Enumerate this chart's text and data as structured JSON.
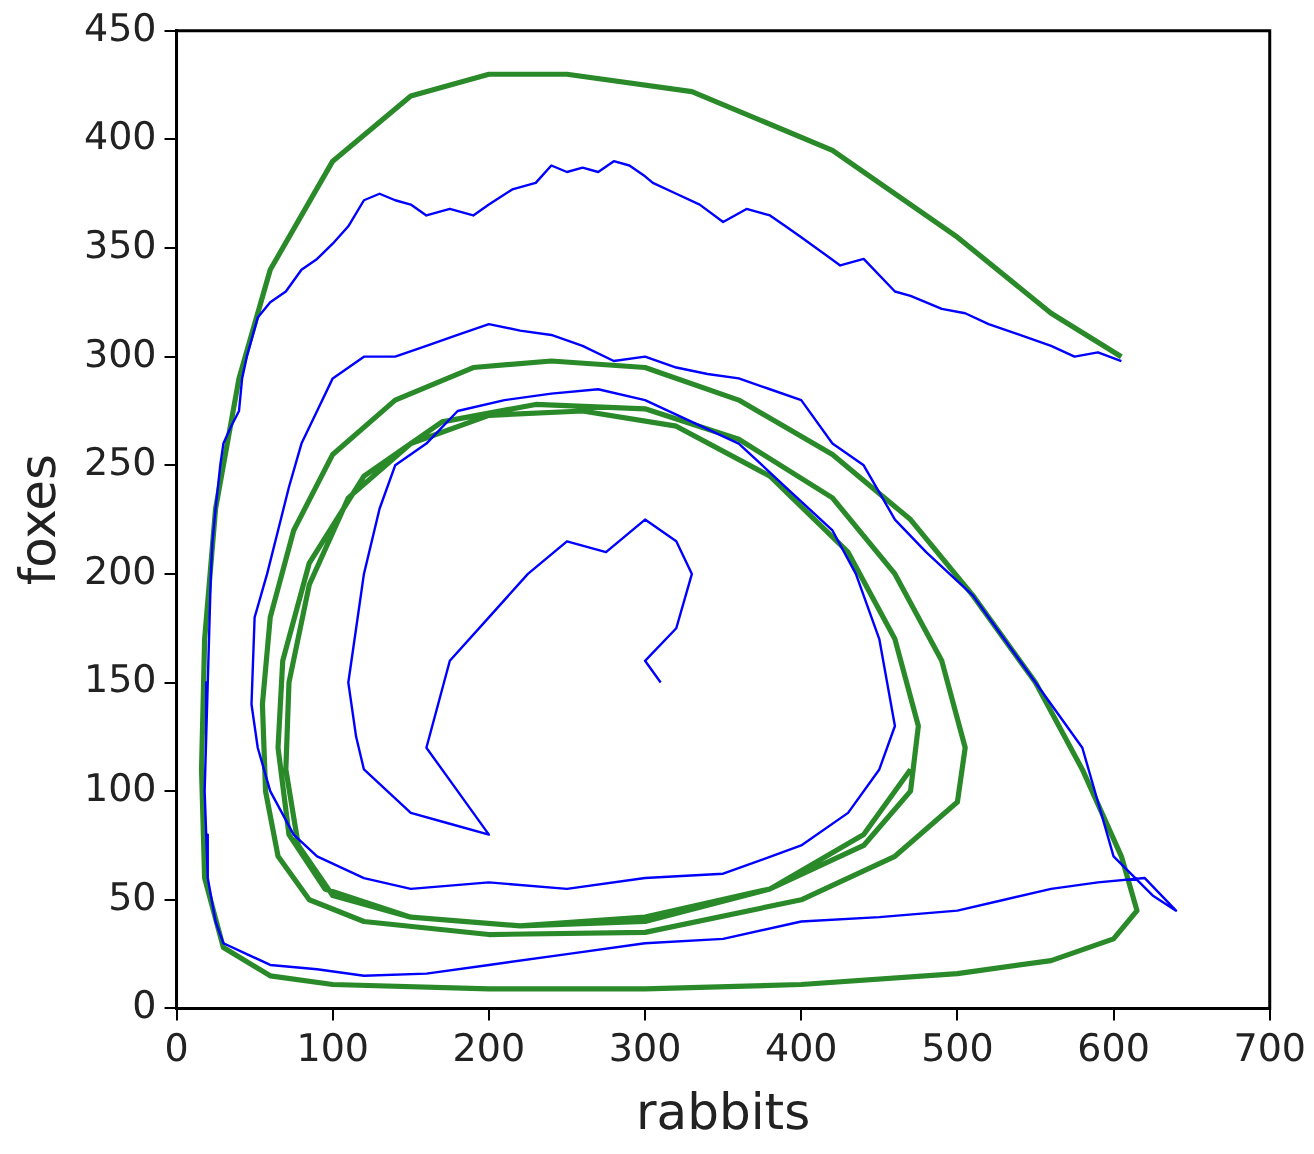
{
  "chart_data": {
    "type": "line",
    "xlabel": "rabbits",
    "ylabel": "foxes",
    "xlim": [
      0,
      700
    ],
    "ylim": [
      0,
      450
    ],
    "xticks": [
      0,
      100,
      200,
      300,
      400,
      500,
      600,
      700
    ],
    "yticks": [
      0,
      50,
      100,
      150,
      200,
      250,
      300,
      350,
      400,
      450
    ],
    "grid": false,
    "legend": false,
    "marker": "none",
    "line_style": "solid",
    "series": [
      {
        "color": "#0000ff",
        "x": [
          605,
          590,
          575,
          560,
          540,
          520,
          505,
          490,
          470,
          460,
          440,
          425,
          400,
          390,
          380,
          365,
          350,
          335,
          320,
          305,
          300,
          290,
          280,
          270,
          260,
          250,
          240,
          230,
          215,
          200,
          190,
          175,
          160,
          150,
          140,
          130,
          120,
          110,
          100,
          90,
          80,
          70,
          60,
          52,
          45,
          42,
          40,
          35,
          30,
          28,
          25,
          23,
          22,
          21,
          20,
          19,
          18,
          19,
          20,
          25,
          30,
          45,
          60,
          90,
          120,
          160,
          200,
          250,
          300,
          350,
          400,
          450,
          500,
          530,
          560,
          590,
          620,
          640,
          625,
          600,
          590,
          580,
          560,
          540,
          525,
          510,
          495,
          480,
          460,
          440,
          420,
          400,
          380,
          360,
          340,
          320,
          300,
          280,
          260,
          240,
          220,
          200,
          180,
          160,
          140,
          120,
          100,
          90,
          80,
          72,
          65,
          58,
          50,
          48,
          52,
          60,
          75,
          90,
          120,
          150,
          200,
          250,
          300,
          350,
          400,
          430,
          450,
          460,
          455,
          450,
          435,
          420,
          390,
          360,
          330,
          300,
          270,
          240,
          210,
          180,
          160,
          140,
          130,
          120,
          115,
          110,
          115,
          120,
          135,
          150,
          175,
          200,
          180,
          160,
          175,
          200,
          225,
          250,
          275,
          300,
          320,
          330,
          320,
          300,
          310
        ],
        "values": [
          298,
          302,
          300,
          305,
          310,
          315,
          320,
          322,
          328,
          330,
          345,
          342,
          355,
          360,
          365,
          368,
          362,
          370,
          375,
          380,
          383,
          388,
          390,
          385,
          387,
          385,
          388,
          380,
          377,
          370,
          365,
          368,
          365,
          370,
          372,
          375,
          372,
          360,
          352,
          345,
          340,
          330,
          325,
          318,
          300,
          290,
          275,
          268,
          260,
          250,
          230,
          215,
          200,
          175,
          150,
          125,
          100,
          80,
          60,
          40,
          30,
          25,
          20,
          18,
          15,
          16,
          20,
          25,
          30,
          32,
          40,
          42,
          45,
          50,
          55,
          58,
          60,
          45,
          52,
          70,
          95,
          120,
          140,
          160,
          175,
          190,
          200,
          210,
          225,
          250,
          260,
          280,
          285,
          290,
          292,
          295,
          300,
          298,
          305,
          310,
          312,
          315,
          310,
          305,
          300,
          300,
          290,
          275,
          260,
          240,
          220,
          200,
          180,
          140,
          120,
          100,
          80,
          70,
          60,
          55,
          58,
          55,
          60,
          62,
          75,
          90,
          110,
          130,
          150,
          170,
          200,
          220,
          240,
          260,
          270,
          280,
          285,
          283,
          280,
          275,
          260,
          250,
          230,
          200,
          175,
          150,
          125,
          110,
          100,
          90,
          85,
          80,
          100,
          120,
          160,
          180,
          200,
          215,
          210,
          225,
          215,
          200,
          175,
          160,
          150
        ]
      },
      {
        "color": "#2a8a2a",
        "x": [
          605,
          560,
          500,
          420,
          330,
          250,
          200,
          150,
          100,
          60,
          40,
          25,
          18,
          16,
          18,
          30,
          60,
          100,
          200,
          300,
          400,
          500,
          560,
          600,
          615,
          605,
          580,
          550,
          510,
          470,
          420,
          360,
          300,
          240,
          190,
          140,
          100,
          75,
          60,
          55,
          57,
          65,
          85,
          120,
          200,
          300,
          400,
          460,
          500,
          505,
          490,
          460,
          420,
          360,
          300,
          230,
          170,
          120,
          85,
          68,
          65,
          72,
          95,
          150,
          220,
          300,
          380,
          440,
          470,
          475,
          460,
          430,
          380,
          320,
          260,
          200,
          150,
          110,
          85,
          72,
          70,
          78,
          100,
          150,
          220,
          300,
          380,
          440,
          470
        ],
        "values": [
          300,
          320,
          355,
          395,
          422,
          430,
          430,
          420,
          390,
          340,
          290,
          230,
          170,
          110,
          60,
          28,
          15,
          11,
          9,
          9,
          11,
          16,
          22,
          32,
          45,
          70,
          110,
          150,
          190,
          225,
          255,
          280,
          295,
          298,
          295,
          280,
          255,
          220,
          180,
          140,
          100,
          70,
          50,
          40,
          34,
          35,
          50,
          70,
          95,
          120,
          160,
          200,
          235,
          262,
          276,
          278,
          270,
          245,
          205,
          160,
          120,
          80,
          55,
          42,
          38,
          40,
          55,
          75,
          100,
          130,
          170,
          210,
          245,
          268,
          275,
          273,
          260,
          235,
          195,
          150,
          110,
          75,
          52,
          42,
          38,
          42,
          55,
          80,
          110
        ]
      }
    ]
  }
}
